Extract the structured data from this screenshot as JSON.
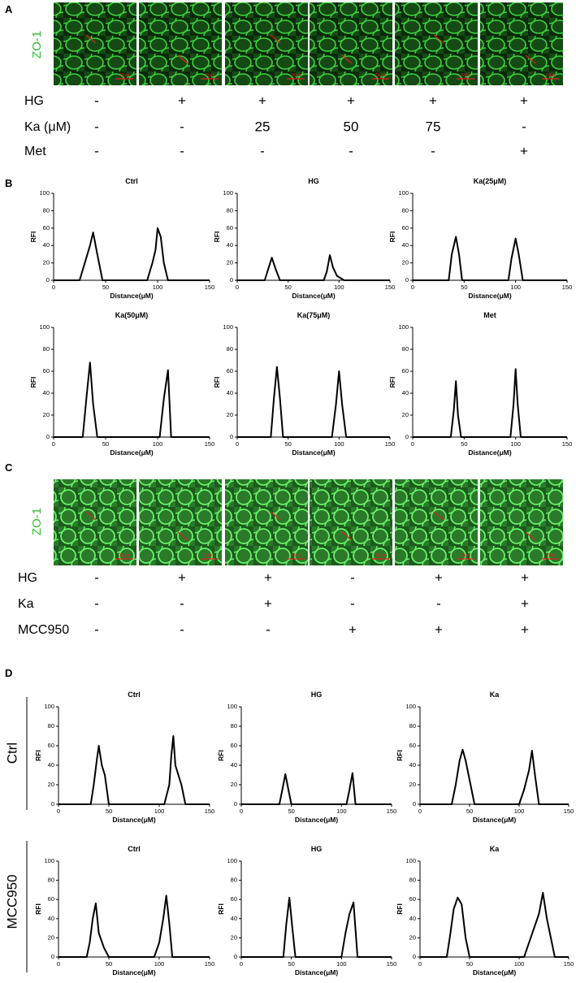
{
  "panel_a": {
    "label": "A",
    "stain": "ZO-1",
    "scale_bar": "20μm",
    "rows": [
      {
        "name": "HG",
        "values": [
          "-",
          "+",
          "+",
          "+",
          "+",
          "+"
        ]
      },
      {
        "name": "Ka (μM)",
        "values": [
          "-",
          "-",
          "25",
          "50",
          "75",
          "-"
        ]
      },
      {
        "name": "Met",
        "values": [
          "-",
          "-",
          "-",
          "-",
          "-",
          "+"
        ]
      }
    ]
  },
  "panel_b": {
    "label": "B"
  },
  "panel_c": {
    "label": "C",
    "stain": "ZO-1",
    "scale_bar": "20μm",
    "rows": [
      {
        "name": "HG",
        "values": [
          "-",
          "+",
          "+",
          "-",
          "+",
          "+"
        ]
      },
      {
        "name": "Ka",
        "values": [
          "-",
          "-",
          "+",
          "-",
          "-",
          "+"
        ]
      },
      {
        "name": "MCC950",
        "values": [
          "-",
          "-",
          "-",
          "+",
          "+",
          "+"
        ]
      }
    ]
  },
  "panel_d": {
    "label": "D",
    "row_labels": [
      "Ctrl",
      "MCC950"
    ]
  },
  "chart_data": [
    {
      "type": "line",
      "title": "Ctrl",
      "xlabel": "Distance(μM)",
      "ylabel": "RFI",
      "xlim": [
        0,
        150
      ],
      "xticks": [
        0,
        50,
        100,
        150
      ],
      "ylim": [
        0,
        100
      ],
      "yticks": [
        0,
        20,
        40,
        60,
        80,
        100
      ],
      "color": "#000000",
      "x": [
        0,
        25,
        30,
        35,
        38,
        42,
        47,
        90,
        95,
        98,
        100,
        103,
        106,
        110,
        150
      ],
      "values": [
        0,
        0,
        20,
        40,
        55,
        30,
        0,
        0,
        20,
        35,
        60,
        50,
        20,
        0,
        0
      ]
    },
    {
      "type": "line",
      "title": "HG",
      "xlabel": "Distance(μM)",
      "ylabel": "RFI",
      "xlim": [
        0,
        150
      ],
      "xticks": [
        0,
        50,
        100,
        150
      ],
      "ylim": [
        0,
        100
      ],
      "yticks": [
        0,
        20,
        40,
        60,
        80,
        100
      ],
      "color": "#000000",
      "x": [
        0,
        27,
        31,
        34,
        38,
        42,
        85,
        88,
        91,
        94,
        98,
        105,
        150
      ],
      "values": [
        0,
        0,
        15,
        26,
        12,
        0,
        0,
        10,
        29,
        15,
        5,
        0,
        0
      ]
    },
    {
      "type": "line",
      "title": "Ka(25μM)",
      "xlabel": "Distance(μM)",
      "ylabel": "RFI",
      "xlim": [
        0,
        150
      ],
      "xticks": [
        0,
        50,
        100,
        150
      ],
      "ylim": [
        0,
        100
      ],
      "yticks": [
        0,
        20,
        40,
        60,
        80,
        100
      ],
      "color": "#000000",
      "x": [
        0,
        35,
        38,
        42,
        45,
        48,
        93,
        96,
        100,
        103,
        107,
        150
      ],
      "values": [
        0,
        0,
        30,
        50,
        30,
        0,
        0,
        25,
        48,
        30,
        0,
        0
      ]
    },
    {
      "type": "line",
      "title": "Ka(50μM)",
      "xlabel": "Distance(μM)",
      "ylabel": "RFI",
      "xlim": [
        0,
        150
      ],
      "xticks": [
        0,
        50,
        100,
        150
      ],
      "ylim": [
        0,
        100
      ],
      "yticks": [
        0,
        20,
        40,
        60,
        80,
        100
      ],
      "color": "#000000",
      "x": [
        0,
        28,
        32,
        35,
        38,
        42,
        102,
        106,
        110,
        113,
        150
      ],
      "values": [
        0,
        0,
        40,
        68,
        30,
        0,
        0,
        35,
        61,
        0,
        0
      ]
    },
    {
      "type": "line",
      "title": "Ka(75μM)",
      "xlabel": "Distance(μM)",
      "ylabel": "RFI",
      "xlim": [
        0,
        150
      ],
      "xticks": [
        0,
        50,
        100,
        150
      ],
      "ylim": [
        0,
        100
      ],
      "yticks": [
        0,
        20,
        40,
        60,
        80,
        100
      ],
      "color": "#000000",
      "x": [
        0,
        33,
        36,
        39,
        42,
        45,
        93,
        97,
        100,
        103,
        107,
        150
      ],
      "values": [
        0,
        0,
        35,
        64,
        35,
        0,
        0,
        30,
        60,
        30,
        0,
        0
      ]
    },
    {
      "type": "line",
      "title": "Met",
      "xlabel": "Distance(μM)",
      "ylabel": "RFI",
      "xlim": [
        0,
        150
      ],
      "xticks": [
        0,
        50,
        100,
        150
      ],
      "ylim": [
        0,
        100
      ],
      "yticks": [
        0,
        20,
        40,
        60,
        80,
        100
      ],
      "color": "#000000",
      "x": [
        0,
        37,
        40,
        42,
        44,
        47,
        95,
        98,
        100,
        102,
        105,
        150
      ],
      "values": [
        0,
        0,
        25,
        51,
        20,
        0,
        0,
        30,
        62,
        30,
        0,
        0
      ]
    },
    {
      "type": "line",
      "title": "Ctrl",
      "xlabel": "Distance(μM)",
      "ylabel": "RFI",
      "xlim": [
        0,
        150
      ],
      "xticks": [
        0,
        50,
        100,
        150
      ],
      "ylim": [
        0,
        100
      ],
      "yticks": [
        0,
        20,
        40,
        60,
        80,
        100
      ],
      "color": "#000000",
      "x": [
        0,
        32,
        35,
        38,
        40,
        43,
        46,
        50,
        105,
        110,
        112,
        114,
        116,
        119,
        122,
        126,
        150
      ],
      "values": [
        0,
        0,
        20,
        45,
        60,
        40,
        30,
        0,
        0,
        20,
        50,
        70,
        40,
        30,
        20,
        0,
        0
      ]
    },
    {
      "type": "line",
      "title": "HG",
      "xlabel": "Distance(μM)",
      "ylabel": "RFI",
      "xlim": [
        0,
        150
      ],
      "xticks": [
        0,
        50,
        100,
        150
      ],
      "ylim": [
        0,
        100
      ],
      "yticks": [
        0,
        20,
        40,
        60,
        80,
        100
      ],
      "color": "#000000",
      "x": [
        0,
        38,
        41,
        44,
        47,
        50,
        105,
        108,
        111,
        114,
        150
      ],
      "values": [
        0,
        0,
        15,
        31,
        15,
        0,
        0,
        15,
        32,
        0,
        0
      ]
    },
    {
      "type": "line",
      "title": "Ka",
      "xlabel": "Distance(μM)",
      "ylabel": "RFI",
      "xlim": [
        0,
        150
      ],
      "xticks": [
        0,
        50,
        100,
        150
      ],
      "ylim": [
        0,
        100
      ],
      "yticks": [
        0,
        20,
        40,
        60,
        80,
        100
      ],
      "color": "#000000",
      "x": [
        0,
        32,
        36,
        40,
        43,
        46,
        50,
        55,
        100,
        105,
        110,
        113,
        116,
        120,
        150
      ],
      "values": [
        0,
        0,
        20,
        45,
        56,
        45,
        25,
        0,
        0,
        15,
        35,
        55,
        30,
        0,
        0
      ]
    },
    {
      "type": "line",
      "title": "Ctrl",
      "xlabel": "Distance(μM)",
      "ylabel": "RFI",
      "xlim": [
        0,
        150
      ],
      "xticks": [
        0,
        50,
        100,
        150
      ],
      "ylim": [
        0,
        100
      ],
      "yticks": [
        0,
        20,
        40,
        60,
        80,
        100
      ],
      "color": "#000000",
      "x": [
        0,
        28,
        31,
        34,
        37,
        40,
        45,
        50,
        95,
        100,
        104,
        107,
        110,
        113,
        150
      ],
      "values": [
        0,
        0,
        15,
        40,
        56,
        25,
        10,
        0,
        0,
        15,
        40,
        64,
        35,
        0,
        0
      ]
    },
    {
      "type": "line",
      "title": "HG",
      "xlabel": "Distance(μM)",
      "ylabel": "RFI",
      "xlim": [
        0,
        150
      ],
      "xticks": [
        0,
        50,
        100,
        150
      ],
      "ylim": [
        0,
        100
      ],
      "yticks": [
        0,
        20,
        40,
        60,
        80,
        100
      ],
      "color": "#000000",
      "x": [
        0,
        42,
        45,
        48,
        51,
        54,
        100,
        104,
        108,
        112,
        116,
        150
      ],
      "values": [
        0,
        0,
        35,
        62,
        30,
        0,
        0,
        25,
        45,
        57,
        0,
        0
      ]
    },
    {
      "type": "line",
      "title": "Ka",
      "xlabel": "Distance(μM)",
      "ylabel": "RFI",
      "xlim": [
        0,
        150
      ],
      "xticks": [
        0,
        50,
        100,
        150
      ],
      "ylim": [
        0,
        100
      ],
      "yticks": [
        0,
        20,
        40,
        60,
        80,
        100
      ],
      "color": "#000000",
      "x": [
        0,
        27,
        30,
        34,
        38,
        42,
        46,
        50,
        105,
        110,
        115,
        120,
        124,
        128,
        132,
        136,
        150
      ],
      "values": [
        0,
        0,
        20,
        50,
        62,
        55,
        20,
        0,
        0,
        15,
        30,
        45,
        67,
        40,
        20,
        0,
        0
      ]
    }
  ]
}
